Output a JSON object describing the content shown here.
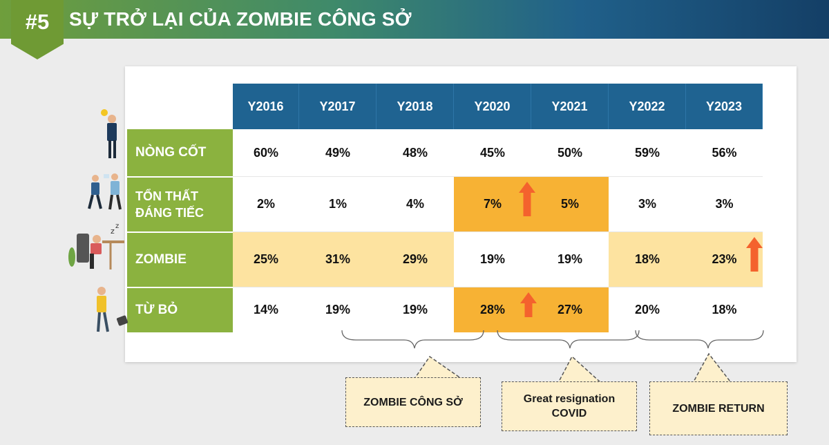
{
  "header": {
    "badge": "#5",
    "title": "SỰ TRỞ LẠI CỦA ZOMBIE CÔNG SỞ"
  },
  "colors": {
    "header_dark": "#143f66",
    "column_header": "#1f6391",
    "row_header": "#8bb23f",
    "highlight_light": "#fde3a0",
    "highlight_orange": "#f7b234",
    "arrow": "#f4622d"
  },
  "chart_data": {
    "type": "table",
    "columns": [
      "Y2016",
      "Y2017",
      "Y2018",
      "Y2020",
      "Y2021",
      "Y2022",
      "Y2023"
    ],
    "rows": [
      {
        "label": "NÒNG CỐT",
        "values": [
          "60%",
          "49%",
          "48%",
          "45%",
          "50%",
          "59%",
          "56%"
        ]
      },
      {
        "label": "TỔN THẤT ĐÁNG TIẾC",
        "values": [
          "2%",
          "1%",
          "4%",
          "7%",
          "5%",
          "3%",
          "3%"
        ]
      },
      {
        "label": "ZOMBIE",
        "values": [
          "25%",
          "31%",
          "29%",
          "19%",
          "19%",
          "18%",
          "23%"
        ]
      },
      {
        "label": "TỪ BỎ",
        "values": [
          "14%",
          "19%",
          "19%",
          "28%",
          "27%",
          "20%",
          "18%"
        ]
      }
    ],
    "highlights": [
      {
        "row": 1,
        "columns": [
          3,
          4
        ],
        "style": "orange",
        "arrow": "up"
      },
      {
        "row": 2,
        "columns": [
          0,
          1,
          2
        ],
        "style": "light"
      },
      {
        "row": 2,
        "columns": [
          5,
          6
        ],
        "style": "light",
        "arrow": "up"
      },
      {
        "row": 3,
        "columns": [
          3,
          4
        ],
        "style": "orange",
        "arrow": "up"
      }
    ],
    "annotations": [
      {
        "text": "ZOMBIE CÔNG SỞ",
        "spans_columns": [
          "Y2017",
          "Y2018"
        ]
      },
      {
        "text": "Great resignation COVID",
        "spans_columns": [
          "Y2020",
          "Y2021"
        ]
      },
      {
        "text": "ZOMBIE RETURN",
        "spans_columns": [
          "Y2022",
          "Y2023"
        ]
      }
    ],
    "row_icons": [
      "businessman-idea-icon",
      "business-people-running-icon",
      "tired-worker-at-desk-icon",
      "person-dropping-bag-icon"
    ]
  }
}
